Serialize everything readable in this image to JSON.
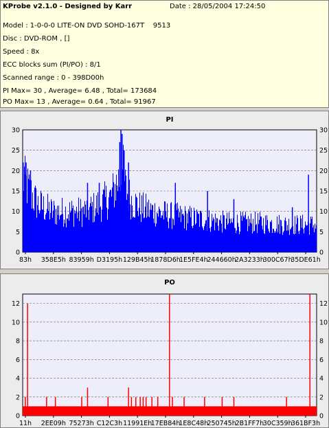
{
  "header": {
    "title": "KProbe v2.1.0 - Designed by Karr",
    "date": "Date : 28/05/2004 17:24:50",
    "model": "Model : 1-0-0-0 LITE-ON DVD SOHD-167T    9513",
    "disc": "Disc : DVD-ROM , []",
    "speed": "Speed : 8x",
    "ecc": "ECC blocks sum (PI/PO) : 8/1",
    "range": "Scanned range : 0 - 398D00h",
    "pi_stats": "PI Max= 30 , Average= 6.48 , Total= 173684",
    "po_stats": "PO Max= 13 , Average= 0.64 , Total= 91967"
  },
  "colors": {
    "pi": "#0000ff",
    "po": "#ff0000",
    "plot_bg": "#eeeefa",
    "panel_bg": "#ececec",
    "header_bg": "#ffffe0"
  },
  "chart_data": [
    {
      "type": "bar",
      "title": "PI",
      "ylim": [
        0,
        30
      ],
      "yticks": [
        0,
        5,
        10,
        15,
        20,
        25,
        30
      ],
      "xticks": [
        "83h",
        "358E5h",
        "83959h",
        "D3195h",
        "129B45h",
        "1878D6h",
        "1E5FE4h",
        "244660h",
        "2A3233h",
        "300C67h",
        "35DE61h"
      ],
      "grid": true,
      "profile": [
        [
          0.0,
          20
        ],
        [
          0.02,
          17
        ],
        [
          0.05,
          13
        ],
        [
          0.1,
          11
        ],
        [
          0.15,
          11
        ],
        [
          0.2,
          11
        ],
        [
          0.24,
          12
        ],
        [
          0.28,
          14
        ],
        [
          0.3,
          15
        ],
        [
          0.32,
          19
        ],
        [
          0.34,
          22
        ],
        [
          0.35,
          17
        ],
        [
          0.37,
          14
        ],
        [
          0.4,
          12
        ],
        [
          0.45,
          11
        ],
        [
          0.5,
          10
        ],
        [
          0.55,
          9.5
        ],
        [
          0.6,
          9
        ],
        [
          0.65,
          8.5
        ],
        [
          0.7,
          8
        ],
        [
          0.8,
          8
        ],
        [
          0.9,
          7.5
        ],
        [
          1.0,
          7.5
        ]
      ],
      "spikes": [
        [
          0.0,
          22
        ],
        [
          0.005,
          21
        ],
        [
          0.01,
          22
        ],
        [
          0.025,
          20
        ],
        [
          0.33,
          27
        ],
        [
          0.334,
          30
        ],
        [
          0.338,
          29
        ],
        [
          0.345,
          25
        ],
        [
          0.36,
          22
        ],
        [
          0.22,
          17
        ],
        [
          0.26,
          17
        ],
        [
          0.52,
          17
        ],
        [
          0.63,
          15
        ],
        [
          0.72,
          13
        ],
        [
          0.92,
          11
        ],
        [
          0.975,
          19
        ]
      ]
    },
    {
      "type": "bar",
      "title": "PO",
      "ylim": [
        0,
        13
      ],
      "yticks": [
        0,
        2,
        4,
        6,
        8,
        10,
        12
      ],
      "xticks": [
        "11h",
        "2EE09h",
        "75273h",
        "C12C3h",
        "11991Eh",
        "17EB84h",
        "1E8C48h",
        "250745h",
        "2B1FF7h",
        "30C359h",
        "361BF3h"
      ],
      "grid": true,
      "baseline": 1,
      "spikes": [
        [
          0.007,
          2
        ],
        [
          0.015,
          12
        ],
        [
          0.08,
          2
        ],
        [
          0.11,
          2
        ],
        [
          0.2,
          2
        ],
        [
          0.22,
          3
        ],
        [
          0.29,
          2
        ],
        [
          0.36,
          3
        ],
        [
          0.37,
          2
        ],
        [
          0.385,
          2
        ],
        [
          0.4,
          2
        ],
        [
          0.41,
          2
        ],
        [
          0.42,
          2
        ],
        [
          0.44,
          2
        ],
        [
          0.46,
          2
        ],
        [
          0.5,
          13
        ],
        [
          0.51,
          2
        ],
        [
          0.55,
          2
        ],
        [
          0.62,
          2
        ],
        [
          0.68,
          2
        ],
        [
          0.72,
          2
        ],
        [
          0.9,
          2
        ],
        [
          0.98,
          13
        ]
      ]
    }
  ]
}
